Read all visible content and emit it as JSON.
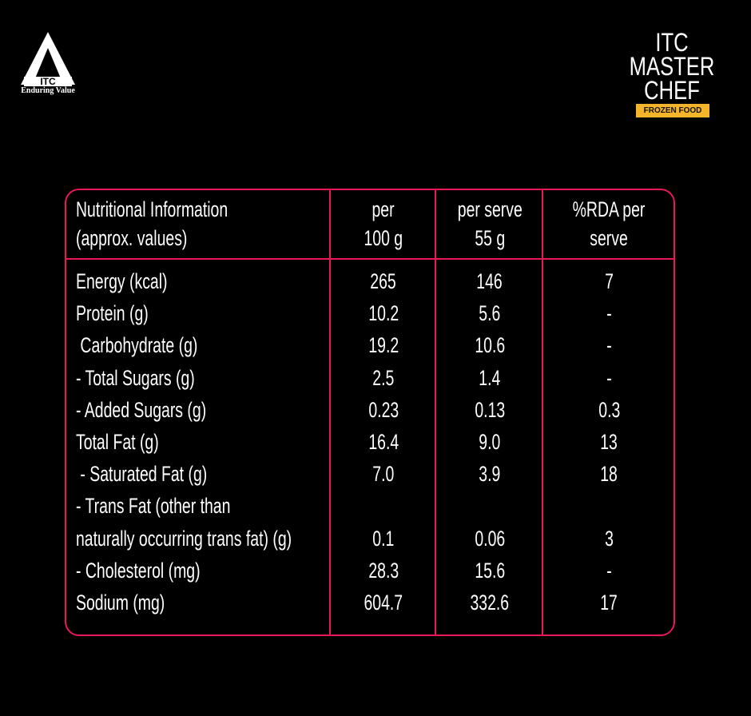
{
  "brand": {
    "itc_tagline": "Enduring Value",
    "itc_logo_text": "ITC",
    "masterchef": {
      "line1": "ITC",
      "line2": "MASTER",
      "line3": "CHEF",
      "ribbon": "FROZEN FOOD"
    }
  },
  "border_color": "#e8185a",
  "header": {
    "col0": [
      "Nutritional Information",
      "(approx. values)"
    ],
    "col1": [
      "per",
      "100 g"
    ],
    "col2": [
      "per serve",
      "55 g"
    ],
    "col3": [
      "%RDA per",
      "serve"
    ]
  },
  "rows": [
    [
      "Energy (kcal)",
      "265",
      "146",
      "7"
    ],
    [
      "Protein (g)",
      "10.2",
      "5.6",
      "-"
    ],
    [
      " Carbohydrate (g)",
      "19.2",
      "10.6",
      "-"
    ],
    [
      "- Total Sugars (g)",
      "2.5",
      "1.4",
      "-"
    ],
    [
      "- Added Sugars (g)",
      "0.23",
      "0.13",
      "0.3"
    ],
    [
      "Total Fat (g)",
      "16.4",
      "9.0",
      "13"
    ],
    [
      " - Saturated Fat (g)",
      "7.0",
      "3.9",
      "18"
    ],
    [
      "- Trans Fat (other than",
      "",
      "",
      ""
    ],
    [
      "naturally occurring trans fat) (g)",
      "0.1",
      "0.06",
      "3"
    ],
    [
      "- Cholesterol (mg)",
      "28.3",
      "15.6",
      "-"
    ],
    [
      "Sodium (mg)",
      "604.7",
      "332.6",
      "17"
    ]
  ]
}
